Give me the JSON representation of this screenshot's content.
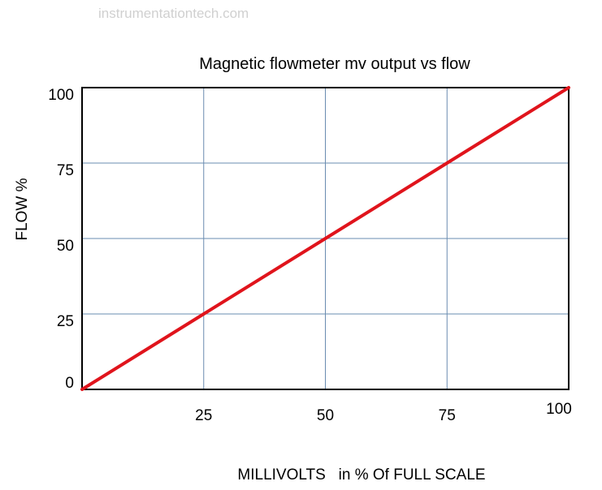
{
  "watermark": "instrumentationtech.com",
  "chart_data": {
    "type": "line",
    "title": "Magnetic flowmeter mv output  vs flow",
    "xlabel": "MILLIVOLTS   in % Of FULL SCALE",
    "ylabel": "FLOW %",
    "x_ticks": [
      "25",
      "50",
      "75",
      "100"
    ],
    "y_ticks": [
      "0",
      "25",
      "50",
      "75",
      "100"
    ],
    "xlim": [
      0,
      100
    ],
    "ylim": [
      0,
      100
    ],
    "grid": true,
    "colors": {
      "line": "#e0141c",
      "grid": "#6a8cb0",
      "frame": "#000000"
    },
    "series": [
      {
        "x": [
          0,
          25,
          50,
          75,
          100
        ],
        "y": [
          0,
          25,
          50,
          75,
          100
        ]
      }
    ]
  }
}
